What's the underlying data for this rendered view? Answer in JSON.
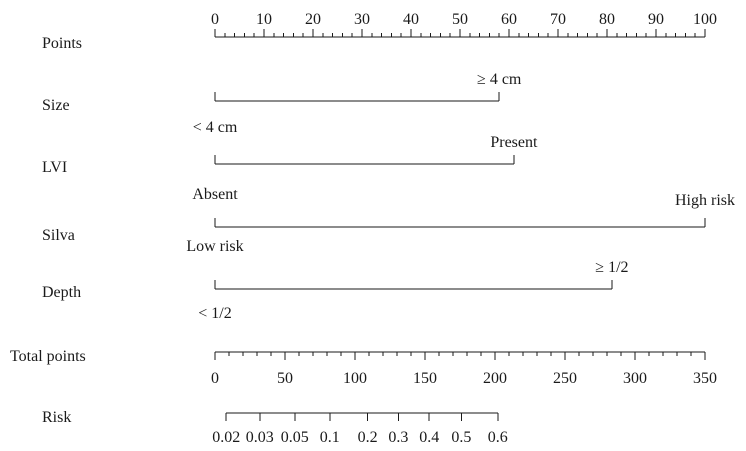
{
  "chart_data": {
    "type": "nomogram",
    "points_scale": {
      "label": "Points",
      "ticks": [
        "0",
        "10",
        "20",
        "30",
        "40",
        "50",
        "60",
        "70",
        "80",
        "90",
        "100"
      ],
      "range": [
        0,
        100
      ]
    },
    "predictors": [
      {
        "label": "Size",
        "levels": [
          {
            "label": "< 4 cm",
            "points": 0
          },
          {
            "label": "≥ 4 cm",
            "points": 58
          }
        ]
      },
      {
        "label": "LVI",
        "levels": [
          {
            "label": "Absent",
            "points": 0
          },
          {
            "label": "Present",
            "points": 61
          }
        ]
      },
      {
        "label": "Silva",
        "levels": [
          {
            "label": "Low risk",
            "points": 0
          },
          {
            "label": "High risk",
            "points": 100
          }
        ]
      },
      {
        "label": "Depth",
        "levels": [
          {
            "label": "< 1/2",
            "points": 0
          },
          {
            "label": "≥ 1/2",
            "points": 81
          }
        ]
      }
    ],
    "total_points_scale": {
      "label": "Total points",
      "ticks": [
        "0",
        "50",
        "100",
        "150",
        "200",
        "250",
        "300",
        "350"
      ],
      "range": [
        0,
        350
      ]
    },
    "risk_scale": {
      "label": "Risk",
      "ticks": [
        {
          "label": "0.02",
          "total_points": 8
        },
        {
          "label": "0.03",
          "total_points": 32
        },
        {
          "label": "0.05",
          "total_points": 57
        },
        {
          "label": "0.1",
          "total_points": 82
        },
        {
          "label": "0.2",
          "total_points": 109
        },
        {
          "label": "0.3",
          "total_points": 131
        },
        {
          "label": "0.4",
          "total_points": 153
        },
        {
          "label": "0.5",
          "total_points": 176
        },
        {
          "label": "0.6",
          "total_points": 202
        }
      ]
    }
  }
}
